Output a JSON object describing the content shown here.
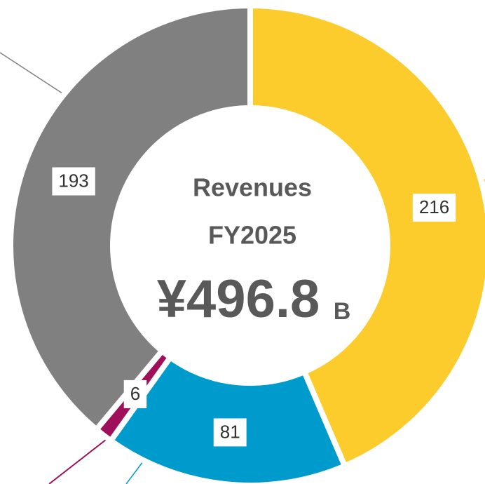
{
  "chart_data": {
    "type": "donut",
    "title_lines": [
      "Revenues",
      "FY2025"
    ],
    "center_value": "¥496.8",
    "center_unit": "B",
    "values": [
      216,
      81,
      6,
      193
    ],
    "colors": [
      "#fccb2c",
      "#009bcd",
      "#a0105a",
      "#808080"
    ]
  }
}
